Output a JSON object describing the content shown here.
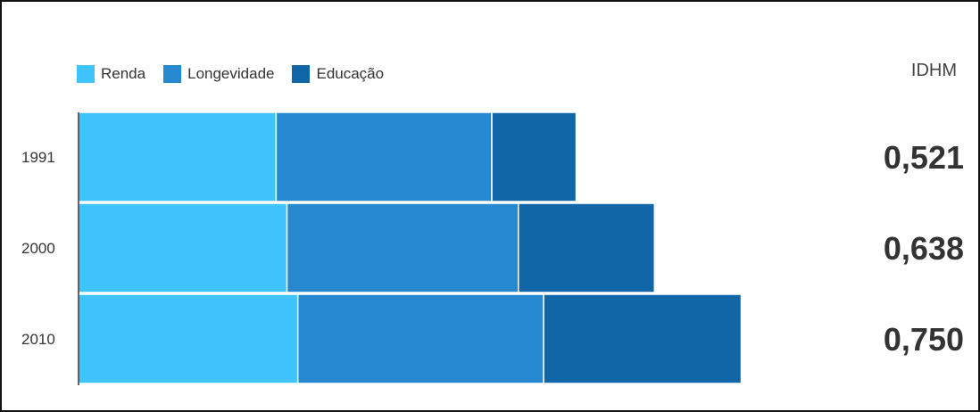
{
  "chart_data": {
    "type": "bar",
    "stacked": true,
    "orientation": "horizontal",
    "categories": [
      "1991",
      "2000",
      "2010"
    ],
    "series": [
      {
        "name": "Renda",
        "color": "#3FC3FC",
        "values": [
          0.164,
          0.173,
          0.182
        ]
      },
      {
        "name": "Longevidade",
        "color": "#2689CF",
        "values": [
          0.179,
          0.192,
          0.204
        ]
      },
      {
        "name": "Educação",
        "color": "#1066A7",
        "values": [
          0.07,
          0.113,
          0.164
        ]
      }
    ],
    "right_header": "IDHM",
    "right_values": [
      "0,521",
      "0,638",
      "0,750"
    ],
    "xlim": [
      0,
      1
    ],
    "legend_position": "top-left",
    "grid": false
  }
}
